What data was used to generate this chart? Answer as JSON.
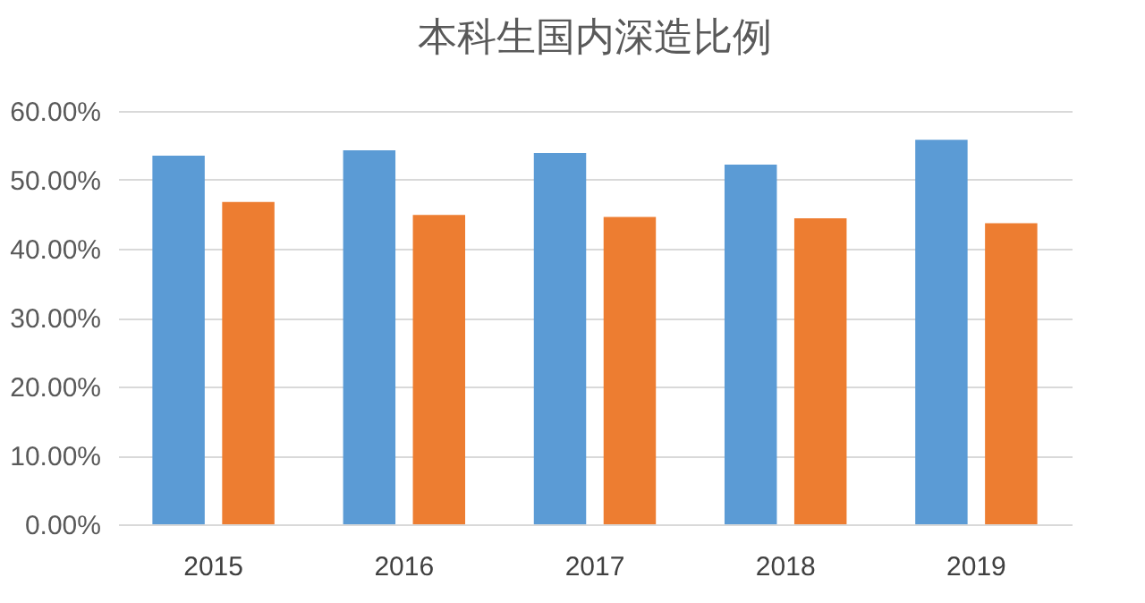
{
  "chart_data": {
    "type": "bar",
    "title": "本科生国内深造比例",
    "categories": [
      "2015",
      "2016",
      "2017",
      "2018",
      "2019"
    ],
    "series": [
      {
        "color": "#5b9bd5",
        "values": [
          53.5,
          54.3,
          53.9,
          52.2,
          55.8
        ]
      },
      {
        "color": "#ed7d31",
        "values": [
          46.8,
          44.9,
          44.6,
          44.4,
          43.7
        ]
      }
    ],
    "ylim": [
      0,
      60
    ],
    "yticks": [
      {
        "value": 0,
        "label": "0.00%"
      },
      {
        "value": 10,
        "label": "10.00%"
      },
      {
        "value": 20,
        "label": "20.00%"
      },
      {
        "value": 30,
        "label": "30.00%"
      },
      {
        "value": 40,
        "label": "40.00%"
      },
      {
        "value": 50,
        "label": "50.00%"
      },
      {
        "value": 60,
        "label": "60.00%"
      }
    ],
    "grid": "y",
    "legend": false
  }
}
